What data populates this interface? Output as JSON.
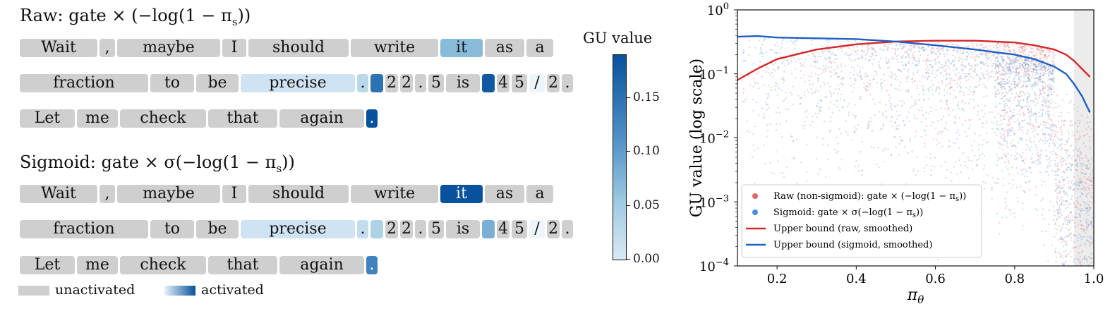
{
  "activation_panel": {
    "raw": {
      "heading": "Raw:  gate × (−log(1 − π",
      "heading_sub": "s",
      "heading_end": "))",
      "rows": [
        [
          [
            "Wait",
            0
          ],
          [
            ",",
            0
          ],
          [
            "maybe",
            0
          ],
          [
            "I",
            0
          ],
          [
            "should",
            0
          ],
          [
            "write",
            0
          ],
          [
            "it",
            0.07
          ],
          [
            "as",
            0
          ],
          [
            "a",
            0
          ]
        ],
        [
          [
            "fraction",
            0
          ],
          [
            "to",
            0
          ],
          [
            "be",
            0
          ],
          [
            "precise",
            0.01
          ],
          [
            ".",
            0.03
          ],
          [
            "",
            0.15
          ],
          [
            "2",
            0
          ],
          [
            "2",
            0
          ],
          [
            ".",
            0
          ],
          [
            "5",
            0
          ],
          [
            "is",
            0
          ],
          [
            "",
            0.18
          ],
          [
            "4",
            0
          ],
          [
            "5",
            0
          ],
          [
            "/",
            0.0
          ],
          [
            "2",
            0
          ],
          [
            ".",
            0
          ]
        ],
        [
          [
            "Let",
            0
          ],
          [
            "me",
            0
          ],
          [
            "check",
            0
          ],
          [
            "that",
            0
          ],
          [
            "again",
            0
          ],
          [
            ".",
            0.19
          ]
        ]
      ]
    },
    "sigmoid": {
      "heading": "Sigmoid:  gate × σ(−log(1 − π",
      "heading_sub": "s",
      "heading_end": "))",
      "rows": [
        [
          [
            "Wait",
            0
          ],
          [
            ",",
            0
          ],
          [
            "maybe",
            0
          ],
          [
            "I",
            0
          ],
          [
            "should",
            0
          ],
          [
            "write",
            0
          ],
          [
            "it",
            0.19
          ],
          [
            "as",
            0
          ],
          [
            "a",
            0
          ]
        ],
        [
          [
            "fraction",
            0
          ],
          [
            "to",
            0
          ],
          [
            "be",
            0
          ],
          [
            "precise",
            0.01
          ],
          [
            ".",
            0.02
          ],
          [
            "",
            0.04
          ],
          [
            "2",
            0
          ],
          [
            "2",
            0
          ],
          [
            ".",
            0
          ],
          [
            "5",
            0
          ],
          [
            "is",
            0
          ],
          [
            "",
            0.08
          ],
          [
            "4",
            0
          ],
          [
            "5",
            0
          ],
          [
            "/",
            0.0
          ],
          [
            "2",
            0
          ],
          [
            ".",
            0
          ]
        ],
        [
          [
            "Let",
            0
          ],
          [
            "me",
            0
          ],
          [
            "check",
            0
          ],
          [
            "that",
            0
          ],
          [
            "again",
            0
          ],
          [
            ".",
            0.13
          ]
        ]
      ]
    },
    "legend": {
      "unactivated": "unactivated",
      "activated": "activated"
    },
    "colorbar": {
      "title": "GU value",
      "ticks": [
        "0.15",
        "0.10",
        "0.05",
        "0.00"
      ],
      "tick_values": [
        0.15,
        0.1,
        0.05,
        0.0
      ],
      "range": [
        0,
        0.19
      ]
    },
    "colors": {
      "inactive": "#cfcfcf",
      "low": "#dbe9f6",
      "high": "#08519c"
    }
  },
  "chart_data": {
    "type": "scatter",
    "xlabel": "π",
    "xlabel_sub": "θ",
    "ylabel": "GU value (log scale)",
    "xlim": [
      0.1,
      1.0
    ],
    "ylim_log10": [
      -4,
      0
    ],
    "xticks": [
      "0.2",
      "0.4",
      "0.6",
      "0.8",
      "1.0"
    ],
    "xtick_values": [
      0.2,
      0.4,
      0.6,
      0.8,
      1.0
    ],
    "yticks": [
      {
        "base": "10",
        "exp": "0",
        "v": 0
      },
      {
        "base": "10",
        "exp": "−1",
        "v": -1
      },
      {
        "base": "10",
        "exp": "−2",
        "v": -2
      },
      {
        "base": "10",
        "exp": "−3",
        "v": -3
      },
      {
        "base": "10",
        "exp": "−4",
        "v": -4
      }
    ],
    "shaded_region": [
      0.95,
      1.0
    ],
    "series": [
      {
        "name": "Raw (non-sigmoid): gate × (−log(1 − π",
        "name_sub": "s",
        "name_end": "))",
        "kind": "scatter",
        "color": "#e06666"
      },
      {
        "name": "Sigmoid: gate × σ(−log(1 − π",
        "name_sub": "s",
        "name_end": "))",
        "kind": "scatter",
        "color": "#4a90d9"
      },
      {
        "name": "Upper bound (raw, smoothed)",
        "kind": "line",
        "color": "#d62728",
        "x": [
          0.1,
          0.15,
          0.2,
          0.3,
          0.4,
          0.5,
          0.6,
          0.7,
          0.8,
          0.85,
          0.9,
          0.93,
          0.95,
          0.97,
          0.99
        ],
        "y": [
          0.08,
          0.12,
          0.17,
          0.24,
          0.29,
          0.32,
          0.33,
          0.33,
          0.31,
          0.28,
          0.24,
          0.2,
          0.16,
          0.12,
          0.09
        ]
      },
      {
        "name": "Upper bound (sigmoid, smoothed)",
        "kind": "line",
        "color": "#1f5fc2",
        "x": [
          0.1,
          0.15,
          0.2,
          0.3,
          0.4,
          0.5,
          0.6,
          0.7,
          0.8,
          0.85,
          0.9,
          0.93,
          0.95,
          0.97,
          0.99
        ],
        "y": [
          0.38,
          0.39,
          0.37,
          0.36,
          0.35,
          0.32,
          0.28,
          0.24,
          0.2,
          0.17,
          0.13,
          0.1,
          0.07,
          0.045,
          0.025
        ]
      }
    ]
  }
}
